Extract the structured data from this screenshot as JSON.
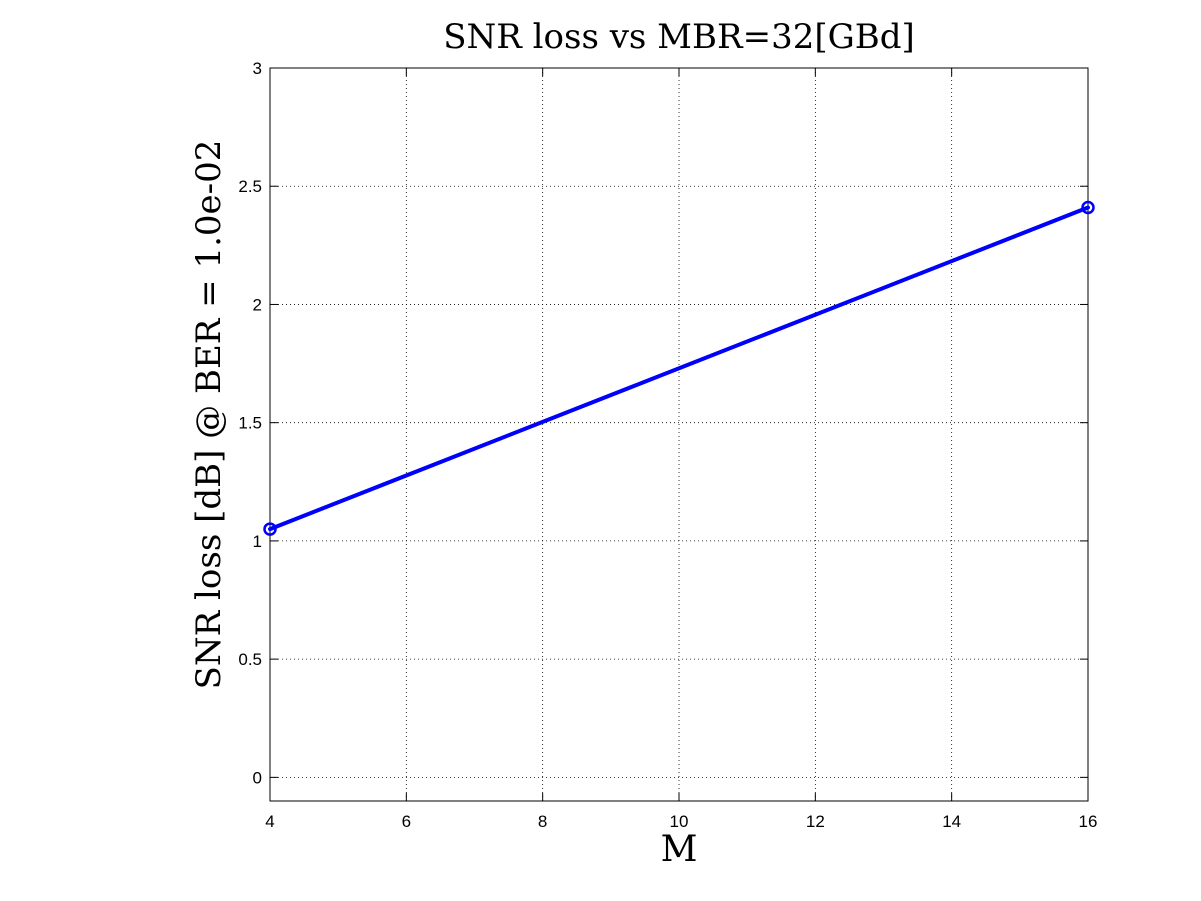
{
  "chart_data": {
    "type": "line",
    "title": "SNR loss vs MBR=32[GBd]",
    "xlabel": "M",
    "ylabel": "SNR loss [dB] @ BER = 1.0e-02",
    "xlim": [
      4,
      16
    ],
    "ylim": [
      -0.1,
      3
    ],
    "xticks": [
      4,
      6,
      8,
      10,
      12,
      14,
      16
    ],
    "xtick_labels": [
      "4",
      "6",
      "8",
      "10",
      "12",
      "14",
      "16"
    ],
    "yticks": [
      0,
      0.5,
      1,
      1.5,
      2,
      2.5,
      3
    ],
    "ytick_labels": [
      "0",
      "0.5",
      "1",
      "1.5",
      "2",
      "2.5",
      "3"
    ],
    "grid": true,
    "grid_style": "dotted",
    "series": [
      {
        "x": [
          4,
          16
        ],
        "y": [
          1.05,
          2.41
        ],
        "color": "#0000ff",
        "marker": "circle"
      }
    ]
  }
}
